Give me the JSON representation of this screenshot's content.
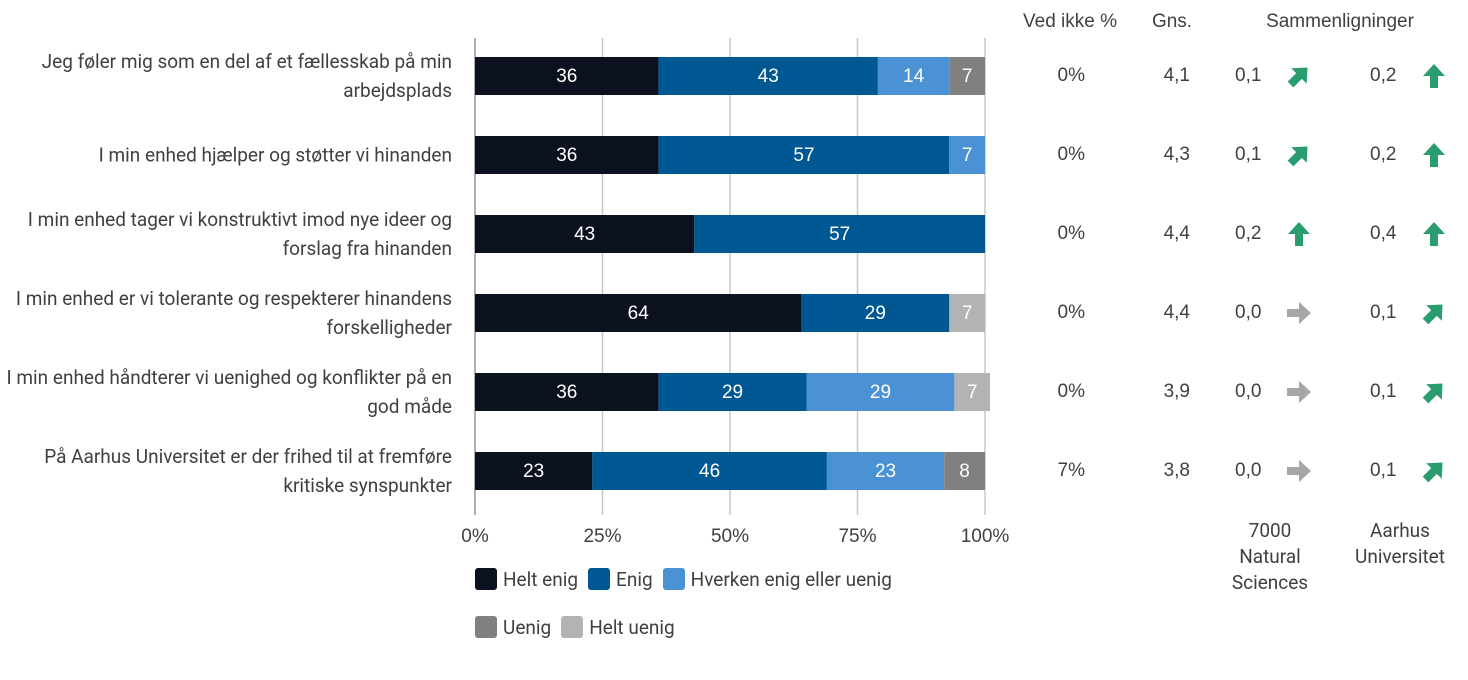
{
  "chart_data": {
    "type": "stacked-bar-horizontal",
    "categories": [
      "Jeg føler mig som en del af et fællesskab på min arbejdsplads",
      "I min enhed hjælper og støtter vi hinanden",
      "I min enhed tager vi konstruktivt imod nye ideer og forslag fra hinanden",
      "I min enhed er vi tolerante og respekterer hinandens forskelligheder",
      "I min enhed håndterer vi uenighed og konflikter på en god måde",
      "På Aarhus Universitet er der frihed til at fremføre kritiske synspunkter"
    ],
    "series": [
      {
        "name": "Helt enig",
        "color": "#0b111f",
        "values": [
          36,
          36,
          43,
          64,
          36,
          23
        ]
      },
      {
        "name": "Enig",
        "color": "#005893",
        "values": [
          43,
          57,
          57,
          29,
          29,
          46
        ]
      },
      {
        "name": "Hverken enig eller uenig",
        "color": "#4b92d4",
        "values": [
          14,
          7,
          null,
          null,
          29,
          23
        ]
      },
      {
        "name": "Uenig",
        "color": "#808080",
        "values": [
          7,
          null,
          null,
          null,
          null,
          8
        ]
      },
      {
        "name": "Helt uenig",
        "color": "#b3b3b3",
        "values": [
          null,
          null,
          null,
          7,
          7,
          null
        ]
      }
    ],
    "xlim": [
      0,
      100
    ],
    "xticks": [
      {
        "value": 0,
        "label": "0%"
      },
      {
        "value": 25,
        "label": "25%"
      },
      {
        "value": 50,
        "label": "50%"
      },
      {
        "value": 75,
        "label": "75%"
      },
      {
        "value": 100,
        "label": "100%"
      }
    ],
    "grid": true,
    "table": {
      "dont_know": {
        "header": "Ved ikke %",
        "values": [
          "0%",
          "0%",
          "0%",
          "0%",
          "0%",
          "7%"
        ]
      },
      "average": {
        "header": "Gns.",
        "values": [
          "4,1",
          "4,3",
          "4,4",
          "4,4",
          "3,9",
          "3,8"
        ]
      },
      "comparisons_header": "Sammenligninger",
      "comparisons": [
        {
          "name": "7000 Natural Sciences",
          "values": [
            "0,1",
            "0,1",
            "0,2",
            "0,0",
            "0,0",
            "0,0"
          ],
          "trends": [
            "up-right",
            "up-right",
            "up",
            "right",
            "right",
            "right"
          ]
        },
        {
          "name": "Aarhus Universitet",
          "values": [
            "0,2",
            "0,2",
            "0,4",
            "0,1",
            "0,1",
            "0,1"
          ],
          "trends": [
            "up",
            "up",
            "up",
            "up-right",
            "up-right",
            "up-right"
          ]
        }
      ]
    }
  }
}
